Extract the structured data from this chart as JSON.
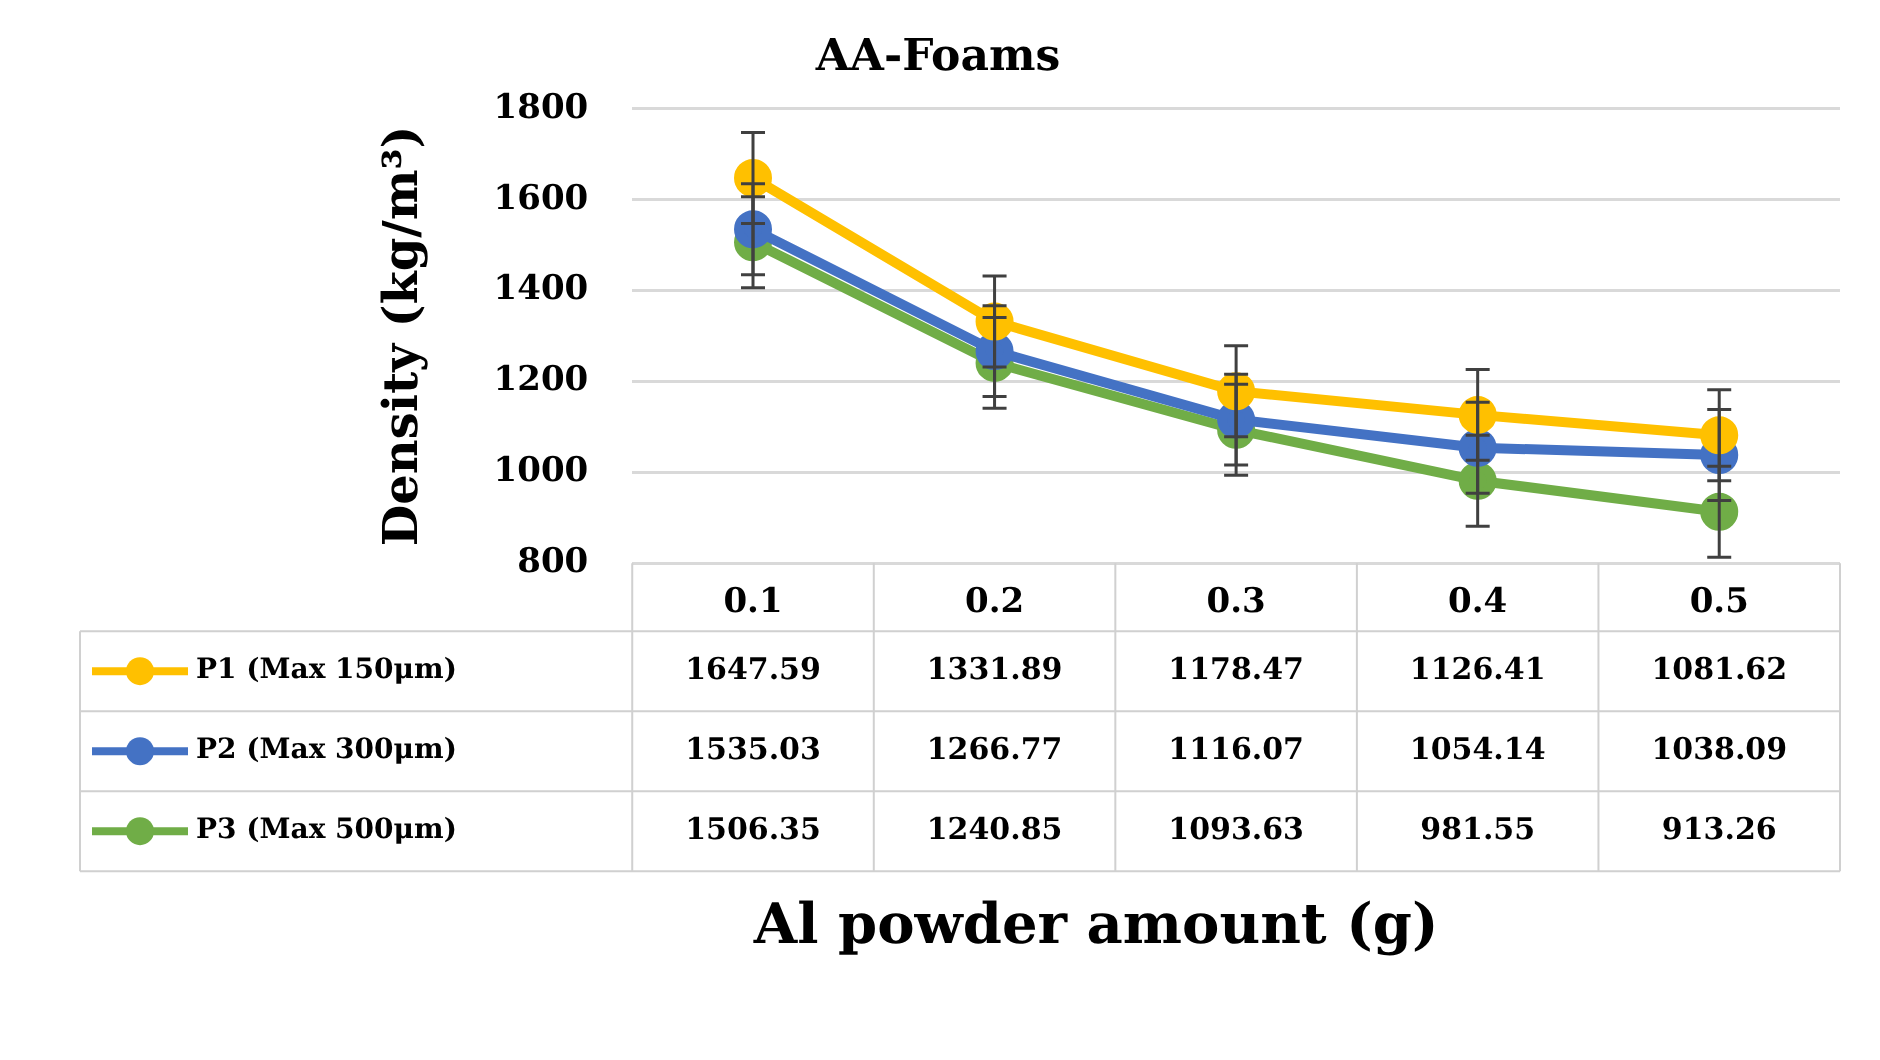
{
  "chart_data": {
    "type": "line",
    "title": "AA-Foams",
    "xlabel": "Al powder amount (g)",
    "ylabel": "Density (kg/m³)",
    "categories": [
      "0.1",
      "0.2",
      "0.3",
      "0.4",
      "0.5"
    ],
    "series": [
      {
        "name": "P1 (Max 150μm)",
        "color": "#ffc000",
        "values": [
          1647.59,
          1331.89,
          1178.47,
          1126.41,
          1081.62
        ],
        "errors": [
          100,
          100,
          100,
          100,
          100
        ]
      },
      {
        "name": "P2 (Max 300μm)",
        "color": "#4472c4",
        "values": [
          1535.03,
          1266.77,
          1116.07,
          1054.14,
          1038.09
        ],
        "errors": [
          100,
          100,
          100,
          100,
          100
        ]
      },
      {
        "name": "P3 (Max 500μm)",
        "color": "#70ad47",
        "values": [
          1506.35,
          1240.85,
          1093.63,
          981.55,
          913.26
        ],
        "errors": [
          100,
          100,
          100,
          100,
          100
        ]
      }
    ],
    "ylim": [
      800,
      1800
    ],
    "yticks": [
      800,
      1000,
      1200,
      1400,
      1600,
      1800
    ],
    "grid": "y",
    "legend": "bottom",
    "marker": "circle",
    "line_style": "solid",
    "data_labels": true
  }
}
